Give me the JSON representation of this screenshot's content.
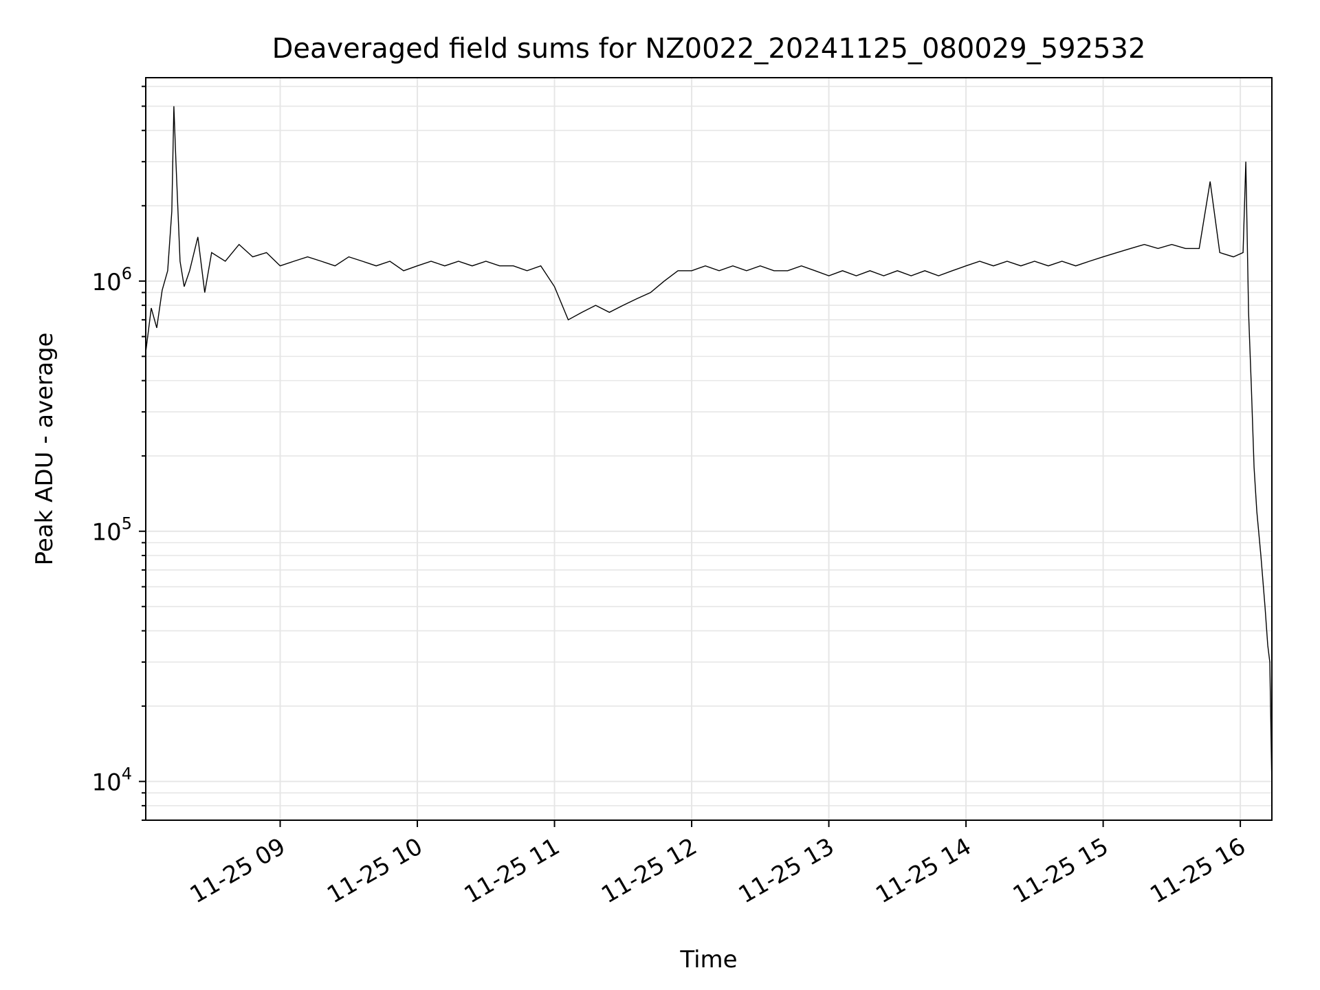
{
  "chart_data": {
    "type": "line",
    "title": "Deaveraged field sums for NZ0022_20241125_080029_592532",
    "xlabel": "Time",
    "ylabel": "Peak ADU - average",
    "x_tick_labels": [
      "11-25 09",
      "11-25 10",
      "11-25 11",
      "11-25 12",
      "11-25 13",
      "11-25 14",
      "11-25 15",
      "11-25 16"
    ],
    "x_ticks_hours": [
      9,
      10,
      11,
      12,
      13,
      14,
      15,
      16
    ],
    "xlim_hours": [
      8.02,
      16.23
    ],
    "y_scale": "log",
    "ylim": [
      7000,
      6500000
    ],
    "y_ticks": [
      {
        "value": 10000,
        "mant": "10",
        "exp": "4"
      },
      {
        "value": 100000,
        "mant": "10",
        "exp": "5"
      },
      {
        "value": 1000000,
        "mant": "10",
        "exp": "6"
      }
    ],
    "grid": true,
    "line_color": "#000000",
    "series": [
      {
        "name": "",
        "points": [
          [
            8.02,
            520000
          ],
          [
            8.06,
            780000
          ],
          [
            8.1,
            650000
          ],
          [
            8.14,
            920000
          ],
          [
            8.18,
            1100000
          ],
          [
            8.21,
            1900000
          ],
          [
            8.225,
            5000000
          ],
          [
            8.24,
            3000000
          ],
          [
            8.27,
            1200000
          ],
          [
            8.3,
            950000
          ],
          [
            8.34,
            1100000
          ],
          [
            8.4,
            1500000
          ],
          [
            8.45,
            900000
          ],
          [
            8.5,
            1300000
          ],
          [
            8.6,
            1200000
          ],
          [
            8.7,
            1400000
          ],
          [
            8.8,
            1250000
          ],
          [
            8.9,
            1300000
          ],
          [
            9.0,
            1150000
          ],
          [
            9.1,
            1200000
          ],
          [
            9.2,
            1250000
          ],
          [
            9.3,
            1200000
          ],
          [
            9.4,
            1150000
          ],
          [
            9.5,
            1250000
          ],
          [
            9.6,
            1200000
          ],
          [
            9.7,
            1150000
          ],
          [
            9.8,
            1200000
          ],
          [
            9.9,
            1100000
          ],
          [
            10.0,
            1150000
          ],
          [
            10.1,
            1200000
          ],
          [
            10.2,
            1150000
          ],
          [
            10.3,
            1200000
          ],
          [
            10.4,
            1150000
          ],
          [
            10.5,
            1200000
          ],
          [
            10.6,
            1150000
          ],
          [
            10.7,
            1150000
          ],
          [
            10.8,
            1100000
          ],
          [
            10.9,
            1150000
          ],
          [
            11.0,
            950000
          ],
          [
            11.1,
            700000
          ],
          [
            11.2,
            750000
          ],
          [
            11.3,
            800000
          ],
          [
            11.4,
            750000
          ],
          [
            11.5,
            800000
          ],
          [
            11.6,
            850000
          ],
          [
            11.7,
            900000
          ],
          [
            11.8,
            1000000
          ],
          [
            11.9,
            1100000
          ],
          [
            12.0,
            1100000
          ],
          [
            12.1,
            1150000
          ],
          [
            12.2,
            1100000
          ],
          [
            12.3,
            1150000
          ],
          [
            12.4,
            1100000
          ],
          [
            12.5,
            1150000
          ],
          [
            12.6,
            1100000
          ],
          [
            12.7,
            1100000
          ],
          [
            12.8,
            1150000
          ],
          [
            12.9,
            1100000
          ],
          [
            13.0,
            1050000
          ],
          [
            13.1,
            1100000
          ],
          [
            13.2,
            1050000
          ],
          [
            13.3,
            1100000
          ],
          [
            13.4,
            1050000
          ],
          [
            13.5,
            1100000
          ],
          [
            13.6,
            1050000
          ],
          [
            13.7,
            1100000
          ],
          [
            13.8,
            1050000
          ],
          [
            13.9,
            1100000
          ],
          [
            14.0,
            1150000
          ],
          [
            14.1,
            1200000
          ],
          [
            14.2,
            1150000
          ],
          [
            14.3,
            1200000
          ],
          [
            14.4,
            1150000
          ],
          [
            14.5,
            1200000
          ],
          [
            14.6,
            1150000
          ],
          [
            14.7,
            1200000
          ],
          [
            14.8,
            1150000
          ],
          [
            14.9,
            1200000
          ],
          [
            15.0,
            1250000
          ],
          [
            15.1,
            1300000
          ],
          [
            15.2,
            1350000
          ],
          [
            15.3,
            1400000
          ],
          [
            15.4,
            1350000
          ],
          [
            15.5,
            1400000
          ],
          [
            15.6,
            1350000
          ],
          [
            15.7,
            1350000
          ],
          [
            15.78,
            2500000
          ],
          [
            15.85,
            1300000
          ],
          [
            15.95,
            1250000
          ],
          [
            16.02,
            1300000
          ],
          [
            16.04,
            3000000
          ],
          [
            16.06,
            750000
          ],
          [
            16.08,
            380000
          ],
          [
            16.1,
            180000
          ],
          [
            16.12,
            120000
          ],
          [
            16.15,
            80000
          ],
          [
            16.18,
            50000
          ],
          [
            16.2,
            35000
          ],
          [
            16.215,
            30000
          ],
          [
            16.23,
            9500
          ]
        ]
      }
    ]
  }
}
